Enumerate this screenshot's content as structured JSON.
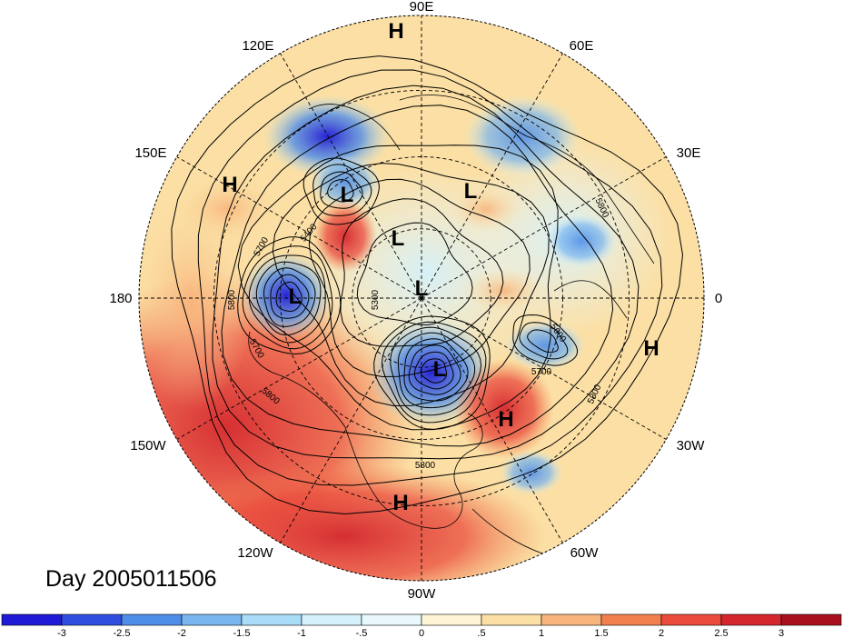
{
  "map": {
    "projection": "north-polar-stereographic",
    "date_label": "Day 2005011506",
    "longitude_labels": {
      "lon_90e": "90E",
      "lon_120e": "120E",
      "lon_60e": "60E",
      "lon_150e": "150E",
      "lon_30e": "30E",
      "lon_180": "180",
      "lon_0": "0",
      "lon_150w": "150W",
      "lon_30w": "30W",
      "lon_120w": "120W",
      "lon_60w": "60W",
      "lon_90w": "90W"
    },
    "pressure_centers": [
      {
        "type": "H",
        "label": "H"
      },
      {
        "type": "H",
        "label": "H"
      },
      {
        "type": "L",
        "label": "L"
      },
      {
        "type": "L",
        "label": "L"
      },
      {
        "type": "L",
        "label": "L"
      },
      {
        "type": "L",
        "label": "L"
      },
      {
        "type": "L",
        "label": "L"
      },
      {
        "type": "L",
        "label": "L"
      },
      {
        "type": "H",
        "label": "H"
      },
      {
        "type": "H",
        "label": "H"
      },
      {
        "type": "H",
        "label": "H"
      }
    ],
    "contour_labels": [
      "5800",
      "5400",
      "5700",
      "5300",
      "5700",
      "5800",
      "5600",
      "5700",
      "5800",
      "5800",
      "5800"
    ]
  },
  "colorbar": {
    "ticks": [
      "-3",
      "-2.5",
      "-2",
      "-1.5",
      "-1",
      "-.5",
      "0",
      ".5",
      "1",
      "1.5",
      "2",
      "2.5",
      "3"
    ],
    "colors": [
      "#1e1ad6",
      "#2f4ee0",
      "#4f8ee8",
      "#79b6f0",
      "#a9dcf6",
      "#d5f1fb",
      "#e9f8fc",
      "#fdf5d3",
      "#fbdfa4",
      "#f8b47c",
      "#f2804f",
      "#ea4b3c",
      "#d4262d",
      "#a8101e"
    ]
  }
}
